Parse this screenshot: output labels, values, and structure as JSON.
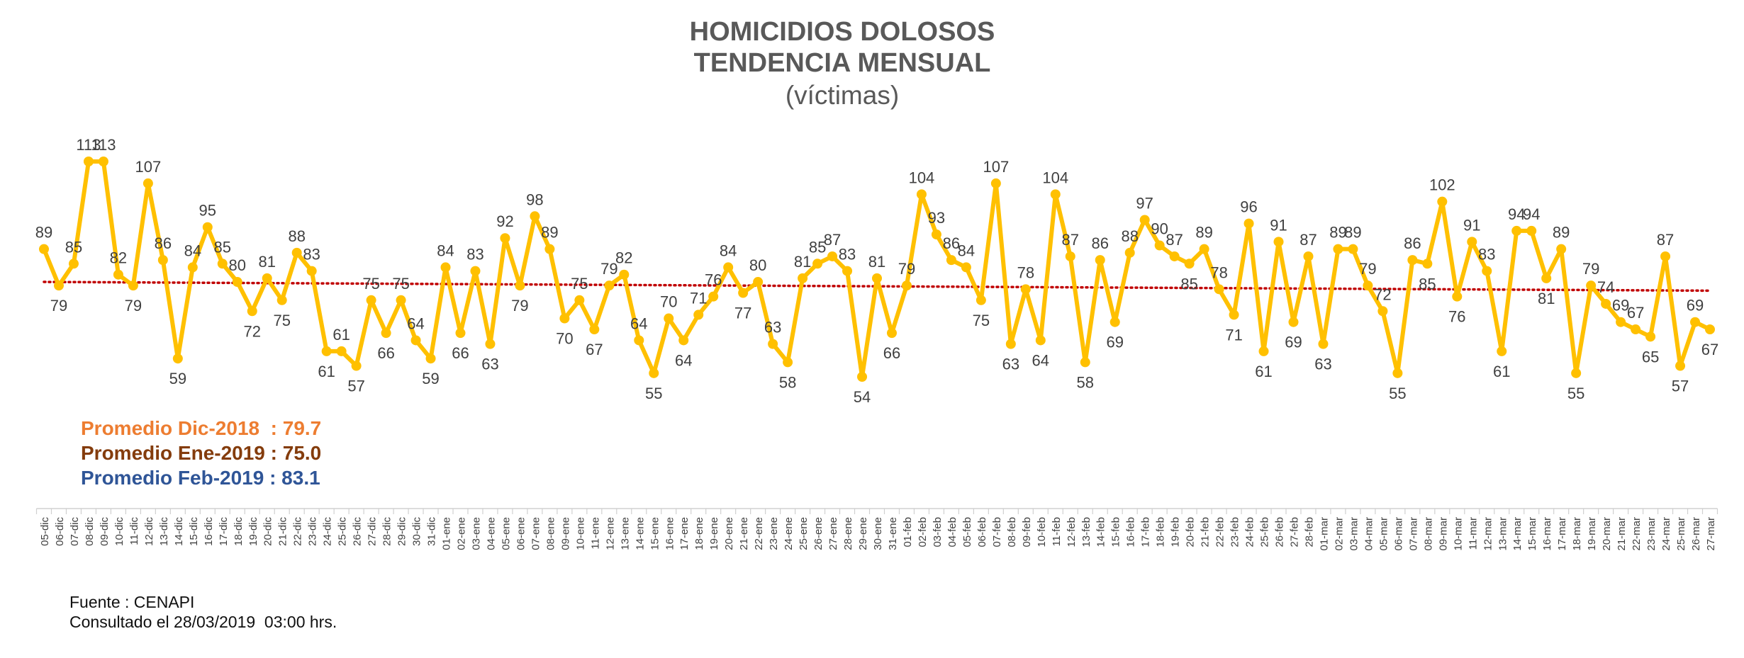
{
  "colors": {
    "line": "#FFC000",
    "trend": "#C00000",
    "title": "#595959",
    "value_label": "#404040",
    "axis_label": "#404040",
    "avg_dec": "#ED7D31",
    "avg_jan": "#843C0C",
    "avg_feb": "#2F5597"
  },
  "chart_data": {
    "type": "line",
    "title": "HOMICIDIOS DOLOSOS",
    "subtitle": "TENDENCIA MENSUAL",
    "unit_label": "(víctimas)",
    "categories": [
      "05-dic",
      "06-dic",
      "07-dic",
      "08-dic",
      "09-dic",
      "10-dic",
      "11-dic",
      "12-dic",
      "13-dic",
      "14-dic",
      "15-dic",
      "16-dic",
      "17-dic",
      "18-dic",
      "19-dic",
      "20-dic",
      "21-dic",
      "22-dic",
      "23-dic",
      "24-dic",
      "25-dic",
      "26-dic",
      "27-dic",
      "28-dic",
      "29-dic",
      "30-dic",
      "31-dic",
      "01-ene",
      "02-ene",
      "03-ene",
      "04-ene",
      "05-ene",
      "06-ene",
      "07-ene",
      "08-ene",
      "09-ene",
      "10-ene",
      "11-ene",
      "12-ene",
      "13-ene",
      "14-ene",
      "15-ene",
      "16-ene",
      "17-ene",
      "18-ene",
      "19-ene",
      "20-ene",
      "21-ene",
      "22-ene",
      "23-ene",
      "24-ene",
      "25-ene",
      "26-ene",
      "27-ene",
      "28-ene",
      "29-ene",
      "30-ene",
      "31-ene",
      "01-feb",
      "02-feb",
      "03-feb",
      "04-feb",
      "05-feb",
      "06-feb",
      "07-feb",
      "08-feb",
      "09-feb",
      "10-feb",
      "11-feb",
      "12-feb",
      "13-feb",
      "14-feb",
      "15-feb",
      "16-feb",
      "17-feb",
      "18-feb",
      "19-feb",
      "20-feb",
      "21-feb",
      "22-feb",
      "23-feb",
      "24-feb",
      "25-feb",
      "26-feb",
      "27-feb",
      "28-feb",
      "01-mar",
      "02-mar",
      "03-mar",
      "04-mar",
      "05-mar",
      "06-mar",
      "07-mar",
      "08-mar",
      "09-mar",
      "10-mar",
      "11-mar",
      "12-mar",
      "13-mar",
      "14-mar",
      "15-mar",
      "16-mar",
      "17-mar",
      "18-mar",
      "19-mar",
      "20-mar",
      "21-mar",
      "22-mar",
      "23-mar",
      "24-mar",
      "25-mar",
      "26-mar",
      "27-mar"
    ],
    "series": [
      {
        "values": [
          89,
          79,
          85,
          113,
          113,
          82,
          79,
          107,
          86,
          59,
          84,
          95,
          85,
          80,
          72,
          81,
          75,
          88,
          83,
          61,
          61,
          57,
          75,
          66,
          75,
          64,
          59,
          84,
          66,
          83,
          63,
          92,
          79,
          98,
          89,
          70,
          75,
          67,
          79,
          82,
          64,
          55,
          70,
          64,
          71,
          76,
          84,
          77,
          80,
          63,
          58,
          81,
          85,
          87,
          83,
          54,
          81,
          66,
          79,
          104,
          93,
          86,
          84,
          75,
          107,
          63,
          78,
          64,
          104,
          87,
          58,
          86,
          69,
          88,
          97,
          90,
          87,
          85,
          89,
          78,
          71,
          96,
          61,
          91,
          69,
          87,
          63,
          89,
          89,
          79,
          72,
          55,
          86,
          85,
          102,
          76,
          91,
          83,
          61,
          94,
          94,
          81,
          89,
          55,
          79,
          74,
          69,
          67,
          65,
          87,
          57,
          69,
          67
        ]
      }
    ],
    "trend": {
      "start": 80.0,
      "end": 77.6,
      "style": "dotted"
    },
    "ylim": [
      40,
      120
    ],
    "grid": false,
    "legend": "none"
  },
  "averages": {
    "dec": "Promedio Dic-2018  : 79.7",
    "jan": "Promedio Ene-2019 : 75.0",
    "feb": "Promedio Feb-2019 : 83.1"
  },
  "source": {
    "line1": "Fuente : CENAPI",
    "line2": "Consultado el 28/03/2019  03:00 hrs."
  }
}
